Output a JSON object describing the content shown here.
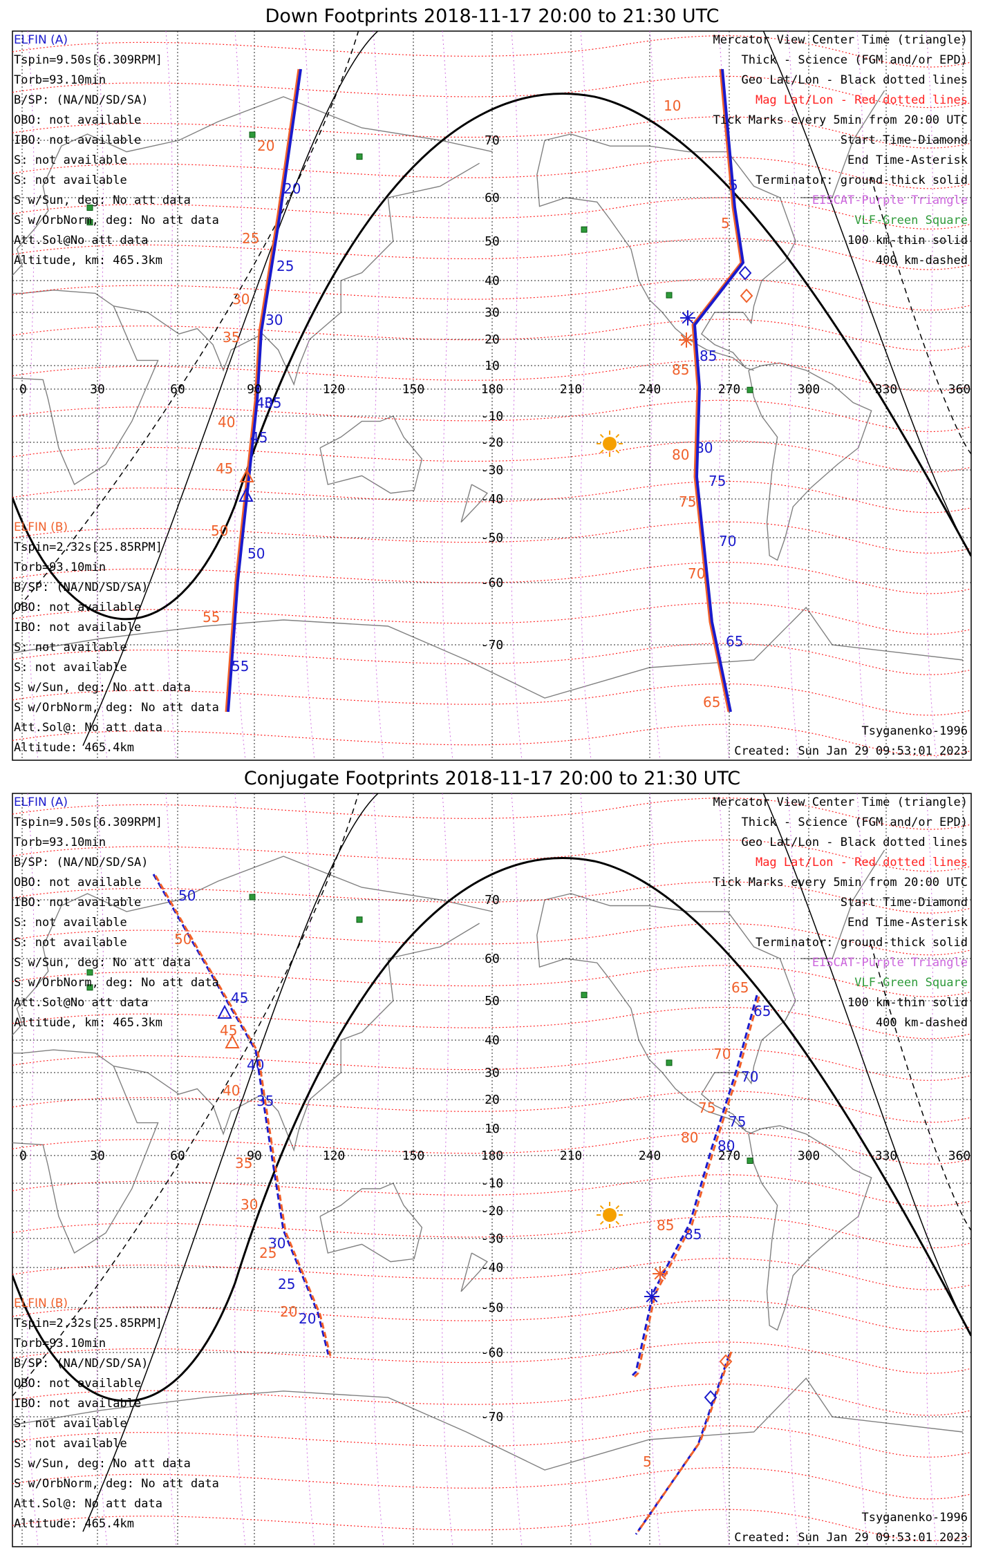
{
  "panels": [
    {
      "title": "Down Footprints 2018-11-17 20:00 to 21:30 UTC",
      "left_info": {
        "elfin_a": {
          "name": "ELFIN (A)",
          "lines": [
            "Tspin=9.50s[6.309RPM]",
            "Torb=93.10min",
            "B/SP: (NA/ND/SD/SA)",
            "OBO: not available",
            "IBO: not available",
            "S: not available",
            "S: not available",
            "S w/Sun, deg: No att data",
            "S w/OrbNorm, deg: No att data",
            "Att.Sol@No att data",
            "Altitude, km: 465.3km"
          ]
        },
        "elfin_b": {
          "name": "ELFIN (B)",
          "lines": [
            "Tspin=2.32s[25.85RPM]",
            "Torb=93.10min",
            "B/SP: (NA/ND/SD/SA)",
            "OBO: not available",
            "IBO: not available",
            "S: not available",
            "S: not available",
            "S w/Sun, deg: No att data",
            "S w/OrbNorm, deg: No att data",
            "Att.Sol@: No att data",
            "Altitude: 465.4km"
          ]
        }
      },
      "right_info": [
        "Mercator View Center Time (triangle)",
        "Thick - Science (FGM and/or EPD)",
        "Geo Lat/Lon - Black dotted lines",
        "Mag Lat/Lon - Red dotted lines",
        "Tick Marks every 5min from 20:00 UTC",
        "Start Time-Diamond",
        "End Time-Asterisk",
        "Terminator: ground-thick solid",
        "EISCAT-Purple Triangle",
        "VLF-Green Square",
        "100 km-thin solid",
        "400 km-dashed"
      ],
      "model": "Tsyganenko-1996",
      "created": "Created: Sun Jan 29 09:53:01 2023",
      "lat_labels": [
        "70",
        "60",
        "50",
        "40",
        "30",
        "20",
        "10",
        "-10",
        "-20",
        "-30",
        "-40",
        "-50",
        "-60",
        "-70"
      ],
      "lon_labels": [
        "0",
        "30",
        "60",
        "90",
        "120",
        "150",
        "180",
        "210",
        "240",
        "270",
        "300",
        "330",
        "360"
      ],
      "track_a_labels": [
        "20",
        "25",
        "30",
        "35",
        "40",
        "45",
        "50",
        "55",
        "5",
        "85",
        "80",
        "75",
        "70",
        "65"
      ],
      "track_b_labels": [
        "20",
        "25",
        "30",
        "35",
        "40",
        "45",
        "50",
        "55",
        "10",
        "5",
        "85",
        "80",
        "75",
        "70",
        "65"
      ]
    },
    {
      "title": "Conjugate Footprints 2018-11-17 20:00 to 21:30 UTC",
      "left_info": {
        "elfin_a": {
          "name": "ELFIN (A)",
          "lines": [
            "Tspin=9.50s[6.309RPM]",
            "Torb=93.10min",
            "B/SP: (NA/ND/SD/SA)",
            "OBO: not available",
            "IBO: not available",
            "S: not available",
            "S: not available",
            "S w/Sun, deg: No att data",
            "S w/OrbNorm, deg: No att data",
            "Att.Sol@No att data",
            "Altitude, km: 465.3km"
          ]
        },
        "elfin_b": {
          "name": "ELFIN (B)",
          "lines": [
            "Tspin=2.32s[25.85RPM]",
            "Torb=93.10min",
            "B/SP: (NA/ND/SD/SA)",
            "OBO: not available",
            "IBO: not available",
            "S: not available",
            "S: not available",
            "S w/Sun, deg: No att data",
            "S w/OrbNorm, deg: No att data",
            "Att.Sol@: No att data",
            "Altitude: 465.4km"
          ]
        }
      },
      "right_info": [
        "Mercator View Center Time (triangle)",
        "Thick - Science (FGM and/or EPD)",
        "Geo Lat/Lon - Black dotted lines",
        "Mag Lat/Lon - Red dotted lines",
        "Tick Marks every 5min from 20:00 UTC",
        "Start Time-Diamond",
        "End Time-Asterisk",
        "Terminator: ground-thick solid",
        "EISCAT-Purple Triangle",
        "VLF-Green Square",
        "100 km-thin solid",
        "400 km-dashed"
      ],
      "model": "Tsyganenko-1996",
      "created": "Created: Sun Jan 29 09:53:01 2023",
      "lat_labels": [
        "70",
        "60",
        "50",
        "40",
        "30",
        "20",
        "10",
        "-10",
        "-20",
        "-30",
        "-40",
        "-50",
        "-60",
        "-70"
      ],
      "lon_labels": [
        "0",
        "30",
        "60",
        "90",
        "120",
        "150",
        "180",
        "210",
        "240",
        "270",
        "300",
        "330",
        "360"
      ],
      "track_a_labels": [
        "50",
        "45",
        "40",
        "35",
        "30",
        "25",
        "20",
        "65",
        "70",
        "75",
        "80",
        "85"
      ],
      "track_b_labels": [
        "50",
        "45",
        "40",
        "35",
        "30",
        "25",
        "20",
        "65",
        "70",
        "75",
        "80",
        "85",
        "5"
      ]
    }
  ],
  "colors": {
    "elfin_a": "#1a1acc",
    "elfin_b": "#f0602a",
    "mag_grid": "#ff2020",
    "geo_grid": "#222222",
    "eiscat": "#cc66dd",
    "vlf": "#2e9a3a",
    "sun": "#f5a000"
  }
}
